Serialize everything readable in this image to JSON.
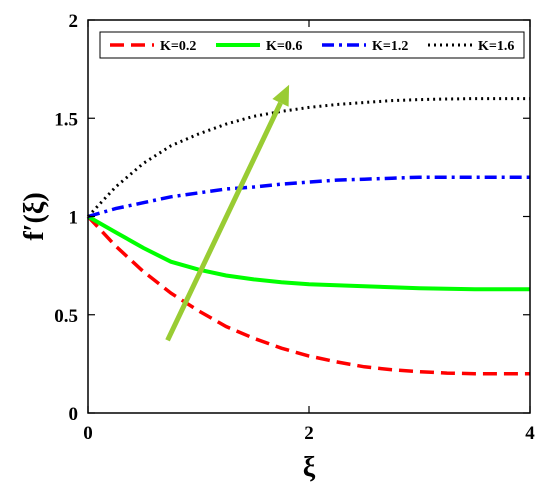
{
  "chart_data": {
    "type": "line",
    "title": "",
    "xlabel": "ξ",
    "ylabel": "f′(ξ)",
    "xlim": [
      0,
      4
    ],
    "ylim": [
      0,
      2
    ],
    "xticks": [
      0,
      2,
      4
    ],
    "xtick_labels": [
      "0",
      "2",
      "4"
    ],
    "yticks": [
      0,
      0.5,
      1,
      1.5,
      2
    ],
    "ytick_labels": [
      "0",
      "0.5",
      "1",
      "1.5",
      "2"
    ],
    "grid": false,
    "legend_position": "top",
    "series": [
      {
        "name": "K=0.2",
        "color": "#ff0000",
        "style": "dashed",
        "x": [
          0,
          0.25,
          0.5,
          0.75,
          1.0,
          1.25,
          1.5,
          1.75,
          2.0,
          2.25,
          2.5,
          2.75,
          3.0,
          3.25,
          3.5,
          3.75,
          4.0
        ],
        "y": [
          1.0,
          0.85,
          0.72,
          0.61,
          0.52,
          0.44,
          0.38,
          0.33,
          0.29,
          0.26,
          0.235,
          0.22,
          0.21,
          0.203,
          0.2,
          0.2,
          0.2
        ]
      },
      {
        "name": "K=0.6",
        "color": "#00ff00",
        "style": "solid",
        "x": [
          0,
          0.25,
          0.5,
          0.75,
          1.0,
          1.25,
          1.5,
          1.75,
          2.0,
          2.25,
          2.5,
          2.75,
          3.0,
          3.25,
          3.5,
          3.75,
          4.0
        ],
        "y": [
          1.0,
          0.92,
          0.84,
          0.77,
          0.73,
          0.7,
          0.68,
          0.665,
          0.655,
          0.65,
          0.645,
          0.64,
          0.635,
          0.632,
          0.63,
          0.63,
          0.63
        ]
      },
      {
        "name": "K=1.2",
        "color": "#0000ff",
        "style": "dashdot",
        "x": [
          0,
          0.25,
          0.5,
          0.75,
          1.0,
          1.25,
          1.5,
          1.75,
          2.0,
          2.25,
          2.5,
          2.75,
          3.0,
          3.25,
          3.5,
          3.75,
          4.0
        ],
        "y": [
          1.0,
          1.04,
          1.07,
          1.1,
          1.12,
          1.14,
          1.15,
          1.165,
          1.175,
          1.185,
          1.19,
          1.195,
          1.2,
          1.2,
          1.2,
          1.2,
          1.2
        ]
      },
      {
        "name": "K=1.6",
        "color": "#000000",
        "style": "dotted",
        "x": [
          0,
          0.25,
          0.5,
          0.75,
          1.0,
          1.25,
          1.5,
          1.75,
          2.0,
          2.25,
          2.5,
          2.75,
          3.0,
          3.25,
          3.5,
          3.75,
          4.0
        ],
        "y": [
          1.0,
          1.15,
          1.27,
          1.36,
          1.42,
          1.47,
          1.51,
          1.535,
          1.555,
          1.57,
          1.58,
          1.59,
          1.595,
          1.598,
          1.6,
          1.6,
          1.6
        ]
      }
    ],
    "annotations": [
      {
        "type": "arrow",
        "meaning": "increasing K",
        "color": "#99cc33",
        "from": [
          0.72,
          0.37
        ],
        "to": [
          1.82,
          1.67
        ]
      }
    ]
  }
}
